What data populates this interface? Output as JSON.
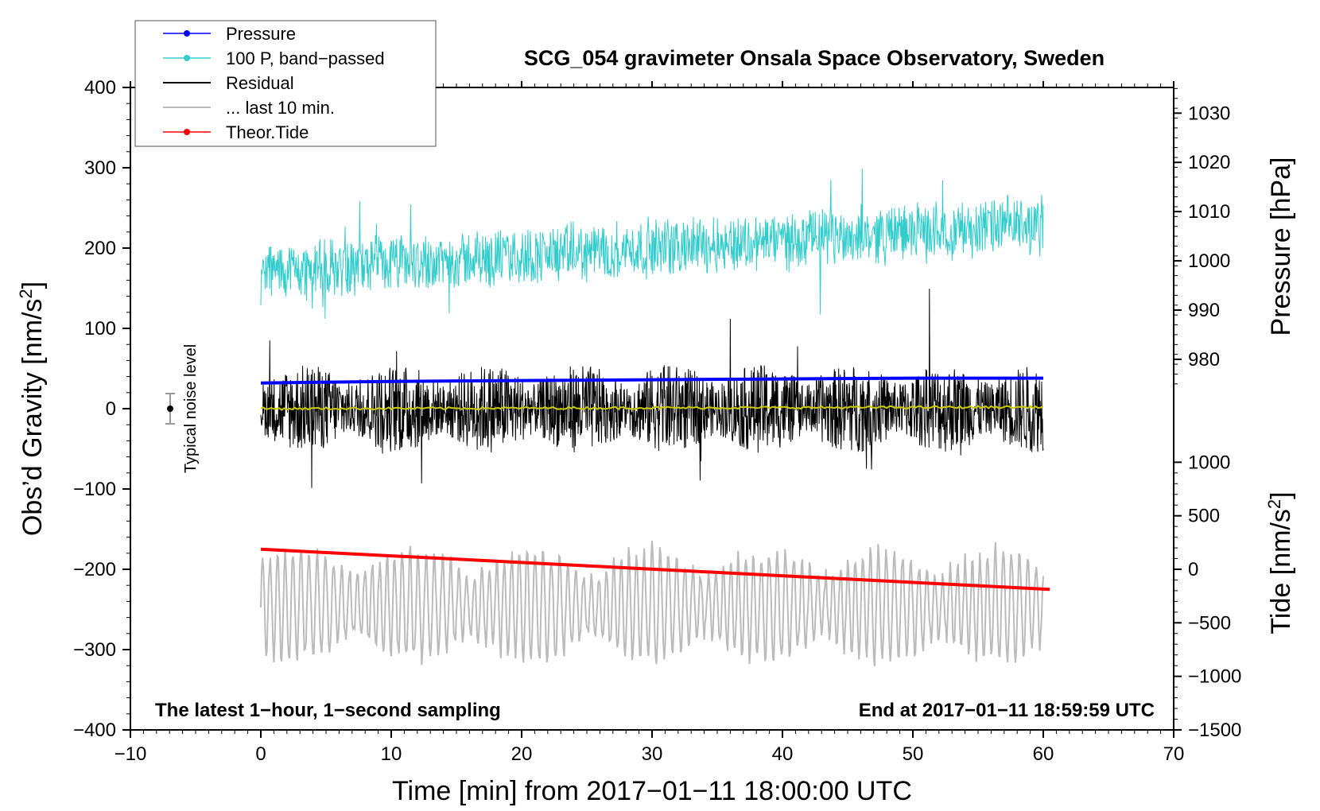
{
  "chart_data": {
    "type": "line",
    "title": "SCG_054 gravimeter Onsala Space Observatory, Sweden",
    "xlabel": "Time [min] from 2017−01−11 18:00:00 UTC",
    "ylabel_left": "Obs’d Gravity [nm/s",
    "ylabel_left_sup": "2",
    "ylabel_left_end": "]",
    "ylabel_right_pressure": "Pressure [hPa]",
    "ylabel_right_tide": "Tide [nm/s",
    "ylabel_right_tide_sup": "2",
    "ylabel_right_tide_end": "]",
    "xlim": [
      -10,
      70
    ],
    "ylim_left": [
      -400,
      400
    ],
    "x_ticks": [
      "−10",
      "0",
      "10",
      "20",
      "30",
      "40",
      "50",
      "60",
      "70"
    ],
    "x_tick_values": [
      -10,
      0,
      10,
      20,
      30,
      40,
      50,
      60,
      70
    ],
    "y_left_ticks": [
      "400",
      "300",
      "200",
      "100",
      "0",
      "−100",
      "−200",
      "−300",
      "−400"
    ],
    "y_left_tick_values": [
      400,
      300,
      200,
      100,
      0,
      -100,
      -200,
      -300,
      -400
    ],
    "pressure_ticks": [
      "1030",
      "1020",
      "1010",
      "1000",
      "990",
      "980"
    ],
    "pressure_tick_values": [
      1030,
      1020,
      1010,
      1000,
      990,
      980
    ],
    "pressure_to_left": {
      "p0": 1030,
      "y0": 368,
      "per_hpa": 6.13
    },
    "tide_ticks": [
      "1000",
      "500",
      "0",
      "−500",
      "−1000",
      "−1500"
    ],
    "tide_tick_values": [
      1000,
      500,
      0,
      -500,
      -1000,
      -1500
    ],
    "tide_to_left": {
      "t0": 0,
      "y0": -200,
      "per_unit": 0.1333
    },
    "legend": [
      {
        "label": "Pressure",
        "color": "#0000ff",
        "marker": true
      },
      {
        "label": "100 P, band−passed",
        "color": "#33cccc",
        "marker": true
      },
      {
        "label": "Residual",
        "color": "#000000",
        "marker": false
      },
      {
        "label": "... last 10 min.",
        "color": "#bbbbbb",
        "marker": false
      },
      {
        "label": "Theor.Tide",
        "color": "#ff0000",
        "marker": true
      }
    ],
    "series": [
      {
        "name": "Pressure",
        "color": "#0000ff",
        "x": [
          0,
          10,
          20,
          30,
          40,
          50,
          60
        ],
        "y": [
          32,
          34,
          35,
          36,
          37,
          38,
          38
        ]
      },
      {
        "name": "100 P, band-passed",
        "color": "#33cccc",
        "x": [
          0,
          60
        ],
        "y_trend": [
          170,
          230
        ],
        "amplitude": 35
      },
      {
        "name": "Residual",
        "color": "#000000",
        "x": [
          0,
          60
        ],
        "y_center": 0,
        "amplitude": 55
      },
      {
        "name": "Residual mean",
        "color": "#cccc00",
        "x": [
          0,
          60
        ],
        "y": [
          0,
          2
        ]
      },
      {
        "name": "Theor.Tide",
        "color": "#ff0000",
        "x": [
          0,
          60.5
        ],
        "y": [
          -175,
          -225
        ]
      },
      {
        "name": "... last 10 min.",
        "color": "#bbbbbb",
        "x": [
          0,
          60
        ],
        "y_center": -245,
        "amplitude": 60
      }
    ],
    "noise_bar": {
      "label": "Typical noise level",
      "x": -7,
      "y": 0,
      "err": 20
    },
    "annotations": {
      "left": "The latest 1−hour, 1−second sampling",
      "right": "End at 2017−01−11 18:59:59 UTC"
    }
  }
}
